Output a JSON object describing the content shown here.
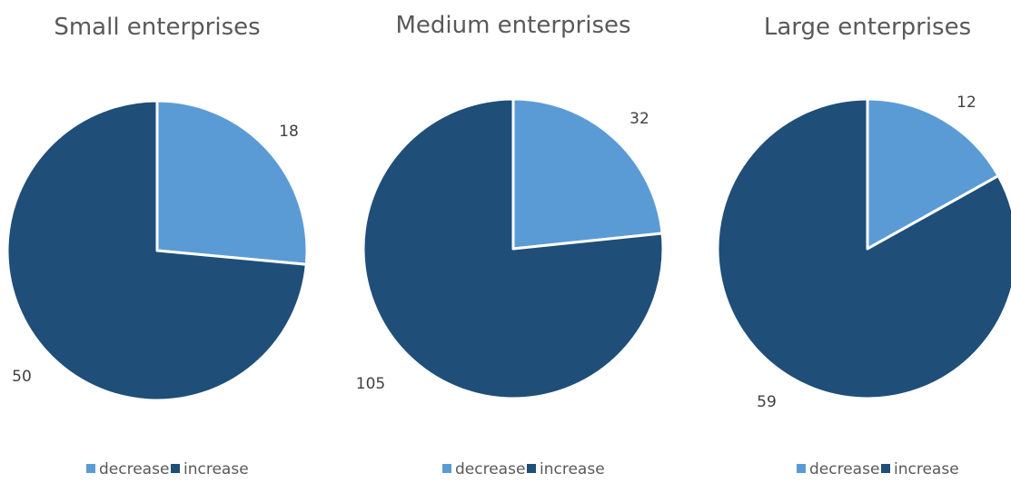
{
  "chart_data": [
    {
      "type": "pie",
      "title": "Small enterprises",
      "categories": [
        "decrease",
        "increase"
      ],
      "values": [
        18,
        50
      ],
      "colors": [
        "#5b9bd5",
        "#1f4e79"
      ],
      "legend": "bottom",
      "data_labels": [
        "18",
        "50"
      ]
    },
    {
      "type": "pie",
      "title": "Medium enterprises",
      "categories": [
        "decrease",
        "increase"
      ],
      "values": [
        32,
        105
      ],
      "colors": [
        "#5b9bd5",
        "#1f4e79"
      ],
      "legend": "bottom",
      "data_labels": [
        "32",
        "105"
      ]
    },
    {
      "type": "pie",
      "title": "Large enterprises",
      "categories": [
        "decrease",
        "increase"
      ],
      "values": [
        12,
        59
      ],
      "colors": [
        "#5b9bd5",
        "#1f4e79"
      ],
      "legend": "bottom",
      "data_labels": [
        "12",
        "59"
      ]
    }
  ]
}
